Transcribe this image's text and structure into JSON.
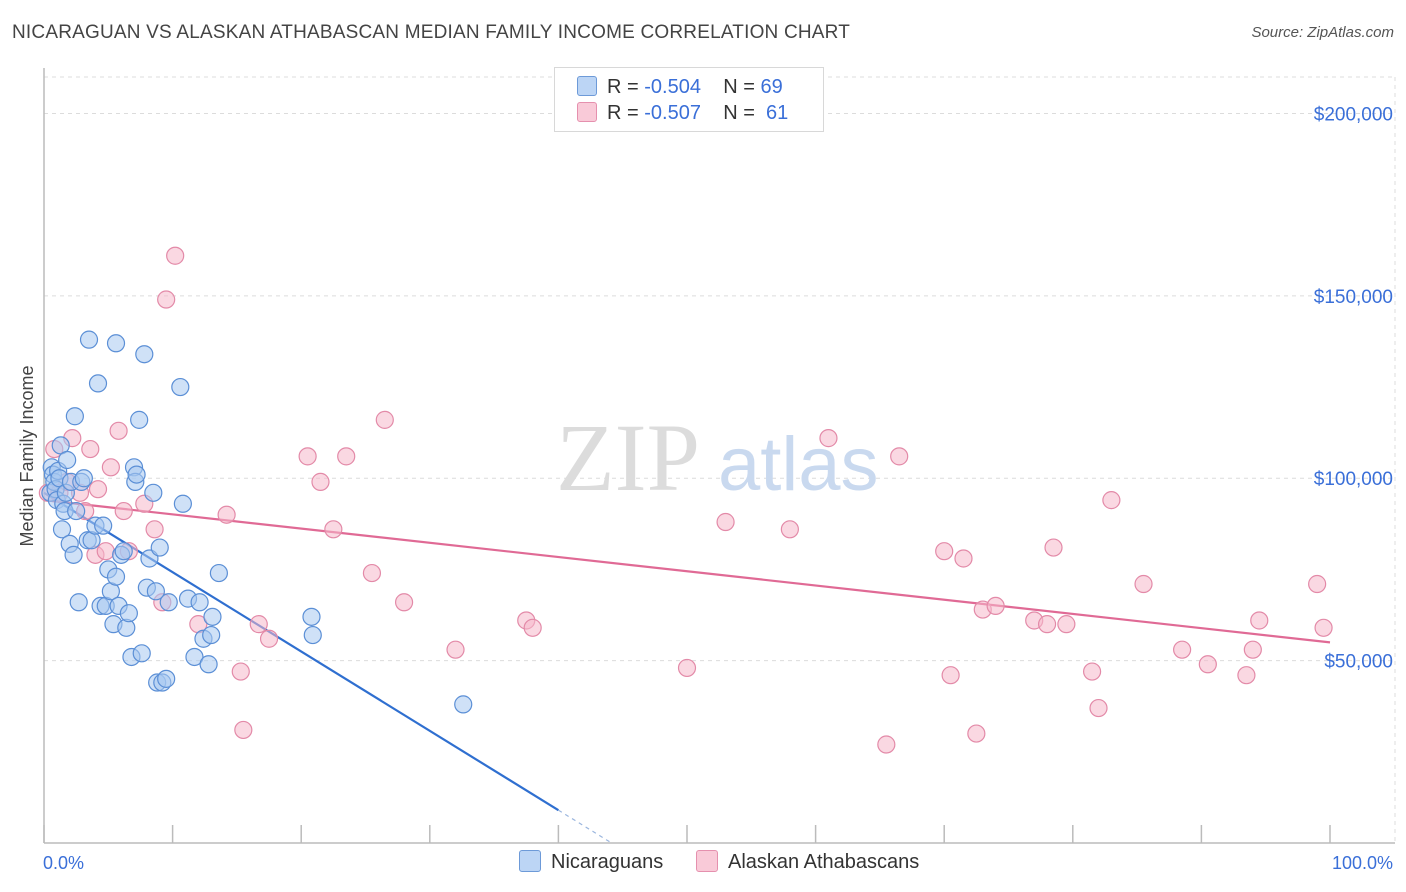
{
  "header": {
    "title": "NICARAGUAN VS ALASKAN ATHABASCAN MEDIAN FAMILY INCOME CORRELATION CHART",
    "source": "Source: ZipAtlas.com"
  },
  "legend": {
    "series1": {
      "r_label": "R = ",
      "r_value": "-0.504",
      "n_label": "N = ",
      "n_value": "69"
    },
    "series2": {
      "r_label": "R = ",
      "r_value": "-0.507",
      "n_label": "N = ",
      "n_value": "61"
    }
  },
  "watermark": {
    "zip": "ZIP",
    "atlas": "atlas"
  },
  "colors": {
    "blue_fill": "#a8c8f0",
    "blue_stroke": "#5b8fd6",
    "blue_line": "#2f6fd0",
    "pink_fill": "#f5b8cb",
    "pink_stroke": "#e38aa8",
    "pink_line": "#e06a95",
    "axis_label": "#3a6fd8"
  },
  "chart_data": {
    "type": "scatter",
    "title": "NICARAGUAN VS ALASKAN ATHABASCAN MEDIAN FAMILY INCOME CORRELATION CHART",
    "xlabel": "",
    "ylabel": "Median Family Income",
    "xlim": [
      0,
      100
    ],
    "ylim": [
      0,
      210000
    ],
    "x_tick_labels": [
      "0.0%",
      "100.0%"
    ],
    "y_ticks": [
      50000,
      100000,
      150000,
      200000
    ],
    "y_tick_labels": [
      "$50,000",
      "$100,000",
      "$150,000",
      "$200,000"
    ],
    "series": [
      {
        "name": "Nicaraguans",
        "color": "#5b8fd6",
        "trend": {
          "x0": 0,
          "y0": 96000,
          "x1": 40,
          "y1": 9000,
          "dash_to_x": 44
        },
        "points": [
          [
            0.5,
            96000
          ],
          [
            0.6,
            103000
          ],
          [
            0.7,
            101000
          ],
          [
            0.8,
            99000
          ],
          [
            0.9,
            97000
          ],
          [
            1.0,
            94000
          ],
          [
            1.1,
            102000
          ],
          [
            1.2,
            100000
          ],
          [
            1.3,
            109000
          ],
          [
            1.4,
            86000
          ],
          [
            1.5,
            93000
          ],
          [
            1.6,
            91000
          ],
          [
            1.7,
            96000
          ],
          [
            1.8,
            105000
          ],
          [
            2.0,
            82000
          ],
          [
            2.1,
            99000
          ],
          [
            2.3,
            79000
          ],
          [
            2.4,
            117000
          ],
          [
            2.5,
            91000
          ],
          [
            2.7,
            66000
          ],
          [
            2.9,
            99000
          ],
          [
            3.1,
            100000
          ],
          [
            3.4,
            83000
          ],
          [
            3.5,
            138000
          ],
          [
            3.7,
            83000
          ],
          [
            4.0,
            87000
          ],
          [
            4.2,
            126000
          ],
          [
            4.4,
            65000
          ],
          [
            4.6,
            87000
          ],
          [
            4.8,
            65000
          ],
          [
            5.0,
            75000
          ],
          [
            5.2,
            69000
          ],
          [
            5.4,
            60000
          ],
          [
            5.6,
            73000
          ],
          [
            5.6,
            137000
          ],
          [
            5.8,
            65000
          ],
          [
            6.0,
            79000
          ],
          [
            6.2,
            80000
          ],
          [
            6.4,
            59000
          ],
          [
            6.6,
            63000
          ],
          [
            6.8,
            51000
          ],
          [
            7.0,
            103000
          ],
          [
            7.1,
            99000
          ],
          [
            7.2,
            101000
          ],
          [
            7.4,
            116000
          ],
          [
            7.6,
            52000
          ],
          [
            7.8,
            134000
          ],
          [
            8.0,
            70000
          ],
          [
            8.2,
            78000
          ],
          [
            8.5,
            96000
          ],
          [
            8.7,
            69000
          ],
          [
            8.8,
            44000
          ],
          [
            9.0,
            81000
          ],
          [
            9.2,
            44000
          ],
          [
            9.5,
            45000
          ],
          [
            9.7,
            66000
          ],
          [
            10.6,
            125000
          ],
          [
            10.8,
            93000
          ],
          [
            11.2,
            67000
          ],
          [
            11.7,
            51000
          ],
          [
            12.1,
            66000
          ],
          [
            12.4,
            56000
          ],
          [
            12.8,
            49000
          ],
          [
            13.0,
            57000
          ],
          [
            13.1,
            62000
          ],
          [
            13.6,
            74000
          ],
          [
            20.8,
            62000
          ],
          [
            20.9,
            57000
          ],
          [
            32.6,
            38000
          ]
        ]
      },
      {
        "name": "Alaskan Athabascans",
        "color": "#e38aa8",
        "trend": {
          "x0": 0,
          "y0": 94000,
          "x1": 100,
          "y1": 55000
        },
        "points": [
          [
            0.3,
            96000
          ],
          [
            0.8,
            108000
          ],
          [
            1.2,
            96000
          ],
          [
            1.8,
            99000
          ],
          [
            2.2,
            111000
          ],
          [
            2.8,
            96000
          ],
          [
            3.2,
            91000
          ],
          [
            3.6,
            108000
          ],
          [
            4.0,
            79000
          ],
          [
            4.2,
            97000
          ],
          [
            4.8,
            80000
          ],
          [
            5.2,
            103000
          ],
          [
            5.8,
            113000
          ],
          [
            6.2,
            91000
          ],
          [
            6.6,
            80000
          ],
          [
            7.8,
            93000
          ],
          [
            8.6,
            86000
          ],
          [
            9.2,
            66000
          ],
          [
            9.5,
            149000
          ],
          [
            10.2,
            161000
          ],
          [
            12.0,
            60000
          ],
          [
            14.2,
            90000
          ],
          [
            15.3,
            47000
          ],
          [
            15.5,
            31000
          ],
          [
            16.7,
            60000
          ],
          [
            17.5,
            56000
          ],
          [
            20.5,
            106000
          ],
          [
            21.5,
            99000
          ],
          [
            22.5,
            86000
          ],
          [
            23.5,
            106000
          ],
          [
            25.5,
            74000
          ],
          [
            26.5,
            116000
          ],
          [
            28.0,
            66000
          ],
          [
            32.0,
            53000
          ],
          [
            37.5,
            61000
          ],
          [
            38.0,
            59000
          ],
          [
            50.0,
            48000
          ],
          [
            53.0,
            88000
          ],
          [
            58.0,
            86000
          ],
          [
            61.0,
            111000
          ],
          [
            65.5,
            27000
          ],
          [
            66.5,
            106000
          ],
          [
            70.0,
            80000
          ],
          [
            70.5,
            46000
          ],
          [
            71.5,
            78000
          ],
          [
            72.5,
            30000
          ],
          [
            73.0,
            64000
          ],
          [
            74.0,
            65000
          ],
          [
            77.0,
            61000
          ],
          [
            78.0,
            60000
          ],
          [
            78.5,
            81000
          ],
          [
            79.5,
            60000
          ],
          [
            81.5,
            47000
          ],
          [
            82.0,
            37000
          ],
          [
            83.0,
            94000
          ],
          [
            85.5,
            71000
          ],
          [
            88.5,
            53000
          ],
          [
            90.5,
            49000
          ],
          [
            93.5,
            46000
          ],
          [
            94.0,
            53000
          ],
          [
            94.5,
            61000
          ]
        ]
      }
    ],
    "extra_points_series2": [
      [
        99.0,
        71000
      ],
      [
        99.5,
        59000
      ]
    ]
  },
  "bottom_legend": {
    "item1": "Nicaraguans",
    "item2": "Alaskan Athabascans"
  }
}
